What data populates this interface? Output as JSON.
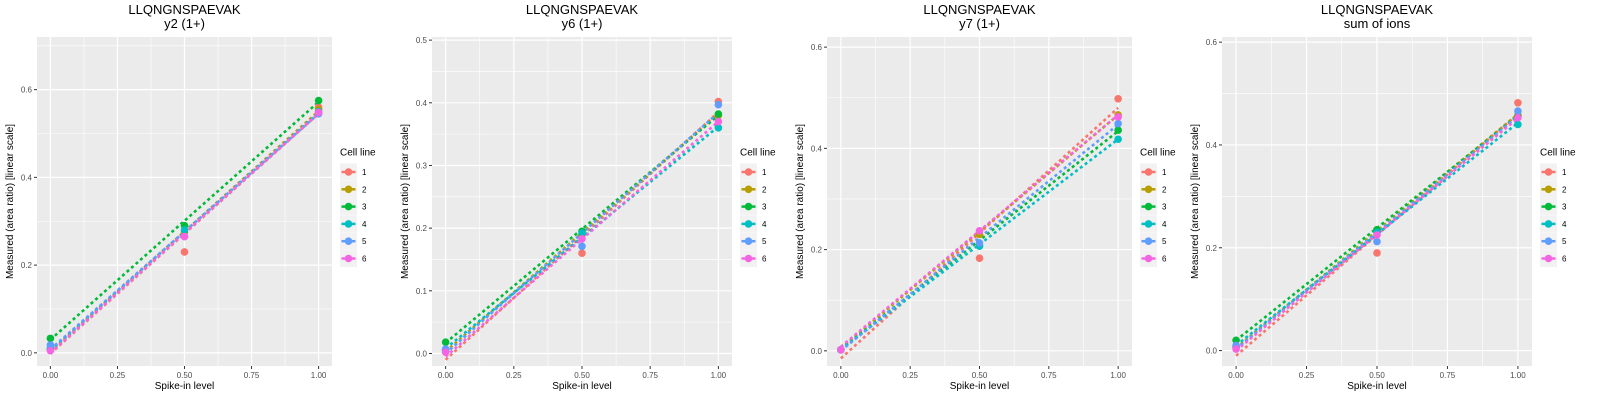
{
  "chart_data": [
    {
      "type": "scatter",
      "title": "LLQNGNSPAEVAK",
      "subtitle": "y2 (1+)",
      "xlabel": "Spike-in level",
      "ylabel": "Measured (area ratio) [linear scale]",
      "xlim": [
        -0.05,
        1.05
      ],
      "ylim": [
        -0.03,
        0.72
      ],
      "xticks": [
        0,
        0.25,
        0.5,
        0.75,
        1
      ],
      "xtick_labels": [
        "0.00",
        "0.25",
        "0.50",
        "0.75",
        "1.00"
      ],
      "yticks": [
        0,
        0.2,
        0.4,
        0.6
      ],
      "ytick_labels": [
        "0.0",
        "0.2",
        "0.4",
        "0.6"
      ],
      "grid": true,
      "legend": {
        "title": "Cell line",
        "position": "right"
      },
      "x": [
        0,
        0.5,
        1
      ],
      "series": [
        {
          "name": "1",
          "color": "#F8766D",
          "values": [
            0.008,
            0.23,
            0.56
          ],
          "fit": [
            -0.002,
            0.545
          ]
        },
        {
          "name": "2",
          "color": "#B79F00",
          "values": [
            0.008,
            0.275,
            0.555
          ],
          "fit": [
            0.002,
            0.551
          ]
        },
        {
          "name": "3",
          "color": "#00BA38",
          "values": [
            0.033,
            0.29,
            0.575
          ],
          "fit": [
            0.03,
            0.572
          ]
        },
        {
          "name": "4",
          "color": "#00BFC4",
          "values": [
            0.01,
            0.28,
            0.55
          ],
          "fit": [
            0.005,
            0.547
          ]
        },
        {
          "name": "5",
          "color": "#619CFF",
          "values": [
            0.018,
            0.265,
            0.545
          ],
          "fit": [
            0.008,
            0.545
          ]
        },
        {
          "name": "6",
          "color": "#F564E3",
          "values": [
            0.005,
            0.265,
            0.548
          ],
          "fit": [
            0.0,
            0.546
          ]
        }
      ]
    },
    {
      "type": "scatter",
      "title": "LLQNGNSPAEVAK",
      "subtitle": "y6 (1+)",
      "xlabel": "Spike-in level",
      "ylabel": "Measured (area ratio) [linear scale]",
      "xlim": [
        -0.05,
        1.05
      ],
      "ylim": [
        -0.02,
        0.505
      ],
      "xticks": [
        0,
        0.25,
        0.5,
        0.75,
        1
      ],
      "xtick_labels": [
        "0.00",
        "0.25",
        "0.50",
        "0.75",
        "1.00"
      ],
      "yticks": [
        0,
        0.1,
        0.2,
        0.3,
        0.4,
        0.5
      ],
      "ytick_labels": [
        "0.0",
        "0.1",
        "0.2",
        "0.3",
        "0.4",
        "0.5"
      ],
      "grid": true,
      "legend": {
        "title": "Cell line",
        "position": "right"
      },
      "x": [
        0,
        0.5,
        1
      ],
      "series": [
        {
          "name": "1",
          "color": "#F8766D",
          "values": [
            0.005,
            0.16,
            0.402
          ],
          "fit": [
            -0.01,
            0.385
          ]
        },
        {
          "name": "2",
          "color": "#B79F00",
          "values": [
            0.005,
            0.19,
            0.38
          ],
          "fit": [
            0.003,
            0.382
          ]
        },
        {
          "name": "3",
          "color": "#00BA38",
          "values": [
            0.018,
            0.195,
            0.382
          ],
          "fit": [
            0.017,
            0.38
          ]
        },
        {
          "name": "4",
          "color": "#00BFC4",
          "values": [
            0.005,
            0.192,
            0.36
          ],
          "fit": [
            0.008,
            0.362
          ]
        },
        {
          "name": "5",
          "color": "#619CFF",
          "values": [
            0.007,
            0.171,
            0.397
          ],
          "fit": [
            0.0,
            0.384
          ]
        },
        {
          "name": "6",
          "color": "#F564E3",
          "values": [
            0.002,
            0.183,
            0.37
          ],
          "fit": [
            -0.005,
            0.37
          ]
        }
      ]
    },
    {
      "type": "scatter",
      "title": "LLQNGNSPAEVAK",
      "subtitle": "y7 (1+)",
      "xlabel": "Spike-in level",
      "ylabel": "Measured (area ratio) [linear scale]",
      "xlim": [
        -0.05,
        1.05
      ],
      "ylim": [
        -0.03,
        0.62
      ],
      "xticks": [
        0,
        0.25,
        0.5,
        0.75,
        1
      ],
      "xtick_labels": [
        "0.00",
        "0.25",
        "0.50",
        "0.75",
        "1.00"
      ],
      "yticks": [
        0,
        0.2,
        0.4,
        0.6
      ],
      "ytick_labels": [
        "0.0",
        "0.2",
        "0.4",
        "0.6"
      ],
      "grid": true,
      "legend": {
        "title": "Cell line",
        "position": "right"
      },
      "x": [
        0,
        0.5,
        1
      ],
      "series": [
        {
          "name": "1",
          "color": "#F8766D",
          "values": [
            0.002,
            0.183,
            0.498
          ],
          "fit": [
            -0.015,
            0.48
          ]
        },
        {
          "name": "2",
          "color": "#B79F00",
          "values": [
            0.002,
            0.23,
            0.466
          ],
          "fit": [
            0.005,
            0.466
          ]
        },
        {
          "name": "3",
          "color": "#00BA38",
          "values": [
            0.002,
            0.207,
            0.436
          ],
          "fit": [
            0.003,
            0.434
          ]
        },
        {
          "name": "4",
          "color": "#00BFC4",
          "values": [
            0.002,
            0.207,
            0.418
          ],
          "fit": [
            0.003,
            0.418
          ]
        },
        {
          "name": "5",
          "color": "#619CFF",
          "values": [
            0.002,
            0.213,
            0.449
          ],
          "fit": [
            0.0,
            0.447
          ]
        },
        {
          "name": "6",
          "color": "#F564E3",
          "values": [
            0.002,
            0.237,
            0.462
          ],
          "fit": [
            0.008,
            0.466
          ]
        }
      ]
    },
    {
      "type": "scatter",
      "title": "LLQNGNSPAEVAK",
      "subtitle": "sum of ions",
      "xlabel": "Spike-in level",
      "ylabel": "Measured (area ratio) [linear scale]",
      "xlim": [
        -0.05,
        1.05
      ],
      "ylim": [
        -0.03,
        0.61
      ],
      "xticks": [
        0,
        0.25,
        0.5,
        0.75,
        1
      ],
      "xtick_labels": [
        "0.00",
        "0.25",
        "0.50",
        "0.75",
        "1.00"
      ],
      "yticks": [
        0,
        0.2,
        0.4,
        0.6
      ],
      "ytick_labels": [
        "0.0",
        "0.2",
        "0.4",
        "0.6"
      ],
      "grid": true,
      "legend": {
        "title": "Cell line",
        "position": "right"
      },
      "x": [
        0,
        0.5,
        1
      ],
      "series": [
        {
          "name": "1",
          "color": "#F8766D",
          "values": [
            0.007,
            0.19,
            0.482
          ],
          "fit": [
            -0.01,
            0.46
          ]
        },
        {
          "name": "2",
          "color": "#B79F00",
          "values": [
            0.007,
            0.235,
            0.458
          ],
          "fit": [
            0.005,
            0.46
          ]
        },
        {
          "name": "3",
          "color": "#00BA38",
          "values": [
            0.02,
            0.235,
            0.455
          ],
          "fit": [
            0.02,
            0.457
          ]
        },
        {
          "name": "4",
          "color": "#00BFC4",
          "values": [
            0.007,
            0.23,
            0.44
          ],
          "fit": [
            0.01,
            0.443
          ]
        },
        {
          "name": "5",
          "color": "#619CFF",
          "values": [
            0.01,
            0.212,
            0.466
          ],
          "fit": [
            0.003,
            0.456
          ]
        },
        {
          "name": "6",
          "color": "#F564E3",
          "values": [
            0.003,
            0.225,
            0.453
          ],
          "fit": [
            0.0,
            0.452
          ]
        }
      ]
    }
  ]
}
